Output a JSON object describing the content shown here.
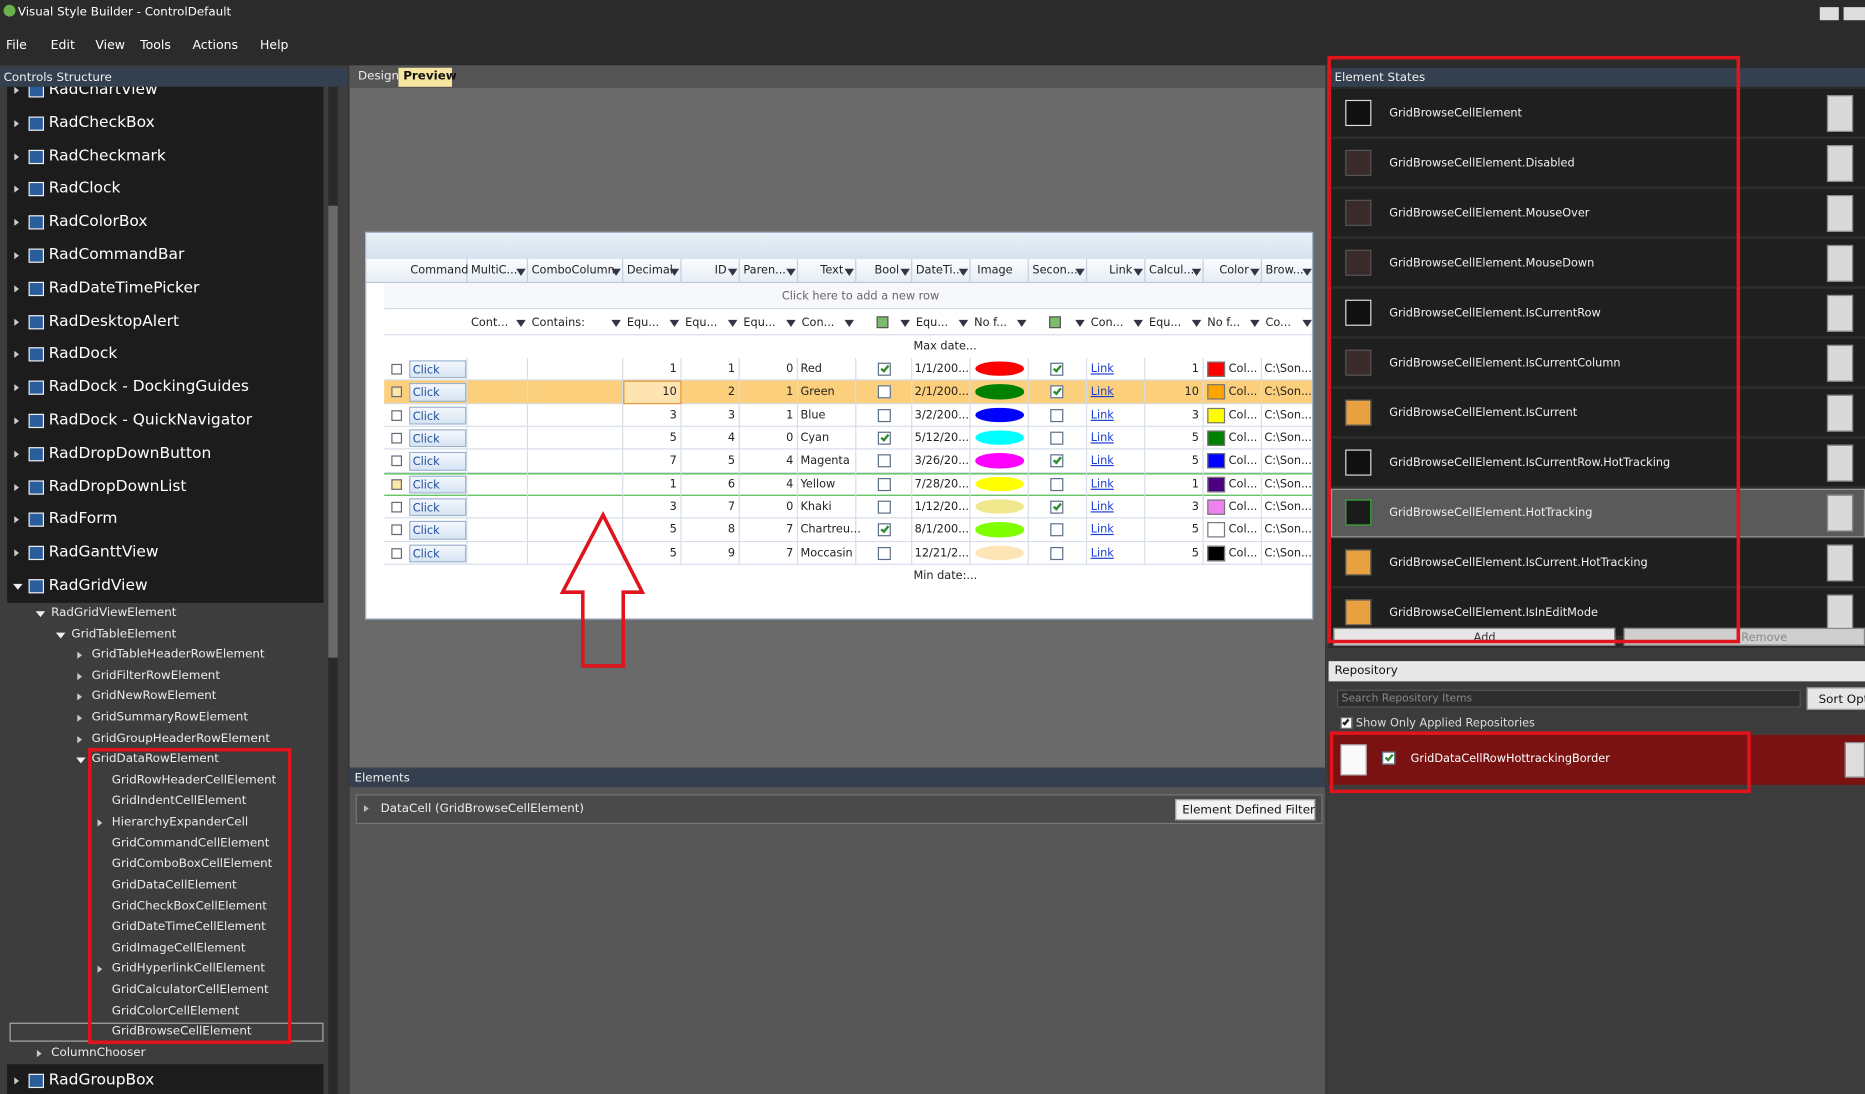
{
  "window": {
    "title": "Visual Style Builder - ControlDefault"
  },
  "menu": [
    "File",
    "Edit",
    "View",
    "Tools",
    "Actions",
    "Help"
  ],
  "controls_structure": {
    "title": "Controls Structure",
    "tree": [
      {
        "label": "RadChartView",
        "expander": "collapsed"
      },
      {
        "label": "RadCheckBox",
        "expander": "collapsed"
      },
      {
        "label": "RadCheckmark",
        "expander": "collapsed"
      },
      {
        "label": "RadClock",
        "expander": "collapsed"
      },
      {
        "label": "RadColorBox",
        "expander": "collapsed"
      },
      {
        "label": "RadCommandBar",
        "expander": "collapsed"
      },
      {
        "label": "RadDateTimePicker",
        "expander": "collapsed"
      },
      {
        "label": "RadDesktopAlert",
        "expander": "collapsed"
      },
      {
        "label": "RadDock",
        "expander": "collapsed"
      },
      {
        "label": "RadDock - DockingGuides",
        "expander": "collapsed"
      },
      {
        "label": "RadDock - QuickNavigator",
        "expander": "collapsed"
      },
      {
        "label": "RadDropDownButton",
        "expander": "collapsed"
      },
      {
        "label": "RadDropDownList",
        "expander": "collapsed"
      },
      {
        "label": "RadForm",
        "expander": "collapsed"
      },
      {
        "label": "RadGanttView",
        "expander": "collapsed"
      },
      {
        "label": "RadGridView",
        "expander": "expanded",
        "children": [
          {
            "label": "RadGridViewElement",
            "expander": "expanded",
            "children": [
              {
                "label": "GridTableElement",
                "expander": "expanded",
                "children": [
                  {
                    "label": "GridTableHeaderRowElement",
                    "expander": "collapsed"
                  },
                  {
                    "label": "GridFilterRowElement",
                    "expander": "collapsed"
                  },
                  {
                    "label": "GridNewRowElement",
                    "expander": "collapsed"
                  },
                  {
                    "label": "GridSummaryRowElement",
                    "expander": "collapsed"
                  },
                  {
                    "label": "GridGroupHeaderRowElement",
                    "expander": "collapsed"
                  },
                  {
                    "label": "GridDataRowElement",
                    "expander": "expanded",
                    "children": [
                      {
                        "label": "GridRowHeaderCellElement"
                      },
                      {
                        "label": "GridIndentCellElement"
                      },
                      {
                        "label": "HierarchyExpanderCell",
                        "expander": "collapsed"
                      },
                      {
                        "label": "GridCommandCellElement"
                      },
                      {
                        "label": "GridComboBoxCellElement"
                      },
                      {
                        "label": "GridDataCellElement"
                      },
                      {
                        "label": "GridCheckBoxCellElement"
                      },
                      {
                        "label": "GridDateTimeCellElement"
                      },
                      {
                        "label": "GridImageCellElement"
                      },
                      {
                        "label": "GridHyperlinkCellElement",
                        "expander": "collapsed"
                      },
                      {
                        "label": "GridCalculatorCellElement"
                      },
                      {
                        "label": "GridColorCellElement"
                      },
                      {
                        "label": "GridBrowseCellElement",
                        "selected": true
                      }
                    ]
                  }
                ]
              }
            ]
          },
          {
            "label": "ColumnChooser",
            "expander": "collapsed"
          }
        ]
      },
      {
        "label": "RadGroupBox",
        "expander": "collapsed"
      }
    ]
  },
  "designer": {
    "tabs": [
      {
        "label": "Design",
        "active": false
      },
      {
        "label": "Preview",
        "active": true
      }
    ],
    "grid": {
      "columns": [
        "Command",
        "MultiC...",
        "ComboColumn",
        "Decimal",
        "ID",
        "Paren...",
        "Text",
        "Bool",
        "DateTi...",
        "Image",
        "Secon...",
        "Link",
        "Calcul...",
        "Color",
        "Brow..."
      ],
      "new_row_text": "Click here to add a new row",
      "filter_row": [
        null,
        "Cont...",
        "Contains:",
        "Equ...",
        "Equ...",
        "Equ...",
        "Con...",
        null,
        "Equ...",
        "No f...",
        null,
        "Con...",
        "Equ...",
        "No f...",
        "Co..."
      ],
      "summary_top": "Max date...",
      "summary_bottom": "Min date:...",
      "rows": [
        {
          "command": "Click",
          "decimal": 1,
          "id": 1,
          "parent": 0,
          "text": "Red",
          "bool": true,
          "datetime": "1/1/200...",
          "image": "#ff0000",
          "second": true,
          "link": "Link",
          "calc": 1,
          "color": "#ff0000",
          "color_text": "Col...",
          "browse": "C:\\Son..."
        },
        {
          "command": "Click",
          "decimal": 10,
          "id": 2,
          "parent": 1,
          "text": "Green",
          "bool": false,
          "datetime": "2/1/200...",
          "image": "#008000",
          "second": true,
          "link": "Link",
          "calc": 10,
          "color": "#ffa500",
          "color_text": "Col...",
          "browse": "C:\\Son...",
          "selected": true
        },
        {
          "command": "Click",
          "decimal": 3,
          "id": 3,
          "parent": 1,
          "text": "Blue",
          "bool": false,
          "datetime": "3/2/200...",
          "image": "#0000ff",
          "second": false,
          "link": "Link",
          "calc": 3,
          "color": "#ffff00",
          "color_text": "Col...",
          "browse": "C:\\Son..."
        },
        {
          "command": "Click",
          "decimal": 5,
          "id": 4,
          "parent": 0,
          "text": "Cyan",
          "bool": true,
          "datetime": "5/12/20...",
          "image": "#00ffff",
          "second": false,
          "link": "Link",
          "calc": 5,
          "color": "#008000",
          "color_text": "Col...",
          "browse": "C:\\Son..."
        },
        {
          "command": "Click",
          "decimal": 7,
          "id": 5,
          "parent": 4,
          "text": "Magenta",
          "bool": false,
          "datetime": "3/26/20...",
          "image": "#ff00ff",
          "second": true,
          "link": "Link",
          "calc": 5,
          "color": "#0000ff",
          "color_text": "Col...",
          "browse": "C:\\Son..."
        },
        {
          "command": "Click",
          "decimal": 1,
          "id": 6,
          "parent": 4,
          "text": "Yellow",
          "bool": false,
          "datetime": "7/28/20...",
          "image": "#ffff00",
          "second": false,
          "link": "Link",
          "calc": 1,
          "color": "#4b0082",
          "color_text": "Col...",
          "browse": "C:\\Son...",
          "hot": true
        },
        {
          "command": "Click",
          "decimal": 3,
          "id": 7,
          "parent": 0,
          "text": "Khaki",
          "bool": false,
          "datetime": "1/12/20...",
          "image": "#f0e68c",
          "second": true,
          "link": "Link",
          "calc": 3,
          "color": "#ee82ee",
          "color_text": "Col...",
          "browse": "C:\\Son..."
        },
        {
          "command": "Click",
          "decimal": 5,
          "id": 8,
          "parent": 7,
          "text": "Chartreu...",
          "bool": true,
          "datetime": "8/1/200...",
          "image": "#7fff00",
          "second": false,
          "link": "Link",
          "calc": 5,
          "color": "#ffffff",
          "color_text": "Col...",
          "browse": "C:\\Son..."
        },
        {
          "command": "Click",
          "decimal": 5,
          "id": 9,
          "parent": 7,
          "text": "Moccasin",
          "bool": false,
          "datetime": "12/21/2...",
          "image": "#ffe4b5",
          "second": false,
          "link": "Link",
          "calc": 5,
          "color": "#000000",
          "color_text": "Col...",
          "browse": "C:\\Son..."
        }
      ]
    }
  },
  "elements": {
    "title": "Elements",
    "items": [
      "DataCell (GridBrowseCellElement)"
    ],
    "filter": "Element Defined Filter"
  },
  "element_states": {
    "title": "Element States",
    "states": [
      {
        "label": "GridBrowseCellElement",
        "icon": "dark"
      },
      {
        "label": "GridBrowseCellElement.Disabled",
        "icon": "empty"
      },
      {
        "label": "GridBrowseCellElement.MouseOver",
        "icon": "empty"
      },
      {
        "label": "GridBrowseCellElement.MouseDown",
        "icon": "empty"
      },
      {
        "label": "GridBrowseCellElement.IsCurrentRow",
        "icon": "dark"
      },
      {
        "label": "GridBrowseCellElement.IsCurrentColumn",
        "icon": "empty"
      },
      {
        "label": "GridBrowseCellElement.IsCurrent",
        "icon": "orange"
      },
      {
        "label": "GridBrowseCellElement.IsCurrentRow.HotTracking",
        "icon": "dark"
      },
      {
        "label": "GridBrowseCellElement.HotTracking",
        "icon": "green",
        "selected": true
      },
      {
        "label": "GridBrowseCellElement.IsCurrent.HotTracking",
        "icon": "orange"
      },
      {
        "label": "GridBrowseCellElement.IsInEditMode",
        "icon": "orange"
      }
    ],
    "buttons": [
      "Add",
      "Remove"
    ]
  },
  "repository": {
    "title": "Repository",
    "search_placeholder": "Search Repository Items",
    "sort_button": "Sort Opti",
    "show_only_applied": {
      "label": "Show Only Applied Repositories",
      "checked": true
    },
    "items": [
      {
        "label": "GridDataCellRowHottrackingBorder",
        "checked": true
      }
    ]
  }
}
